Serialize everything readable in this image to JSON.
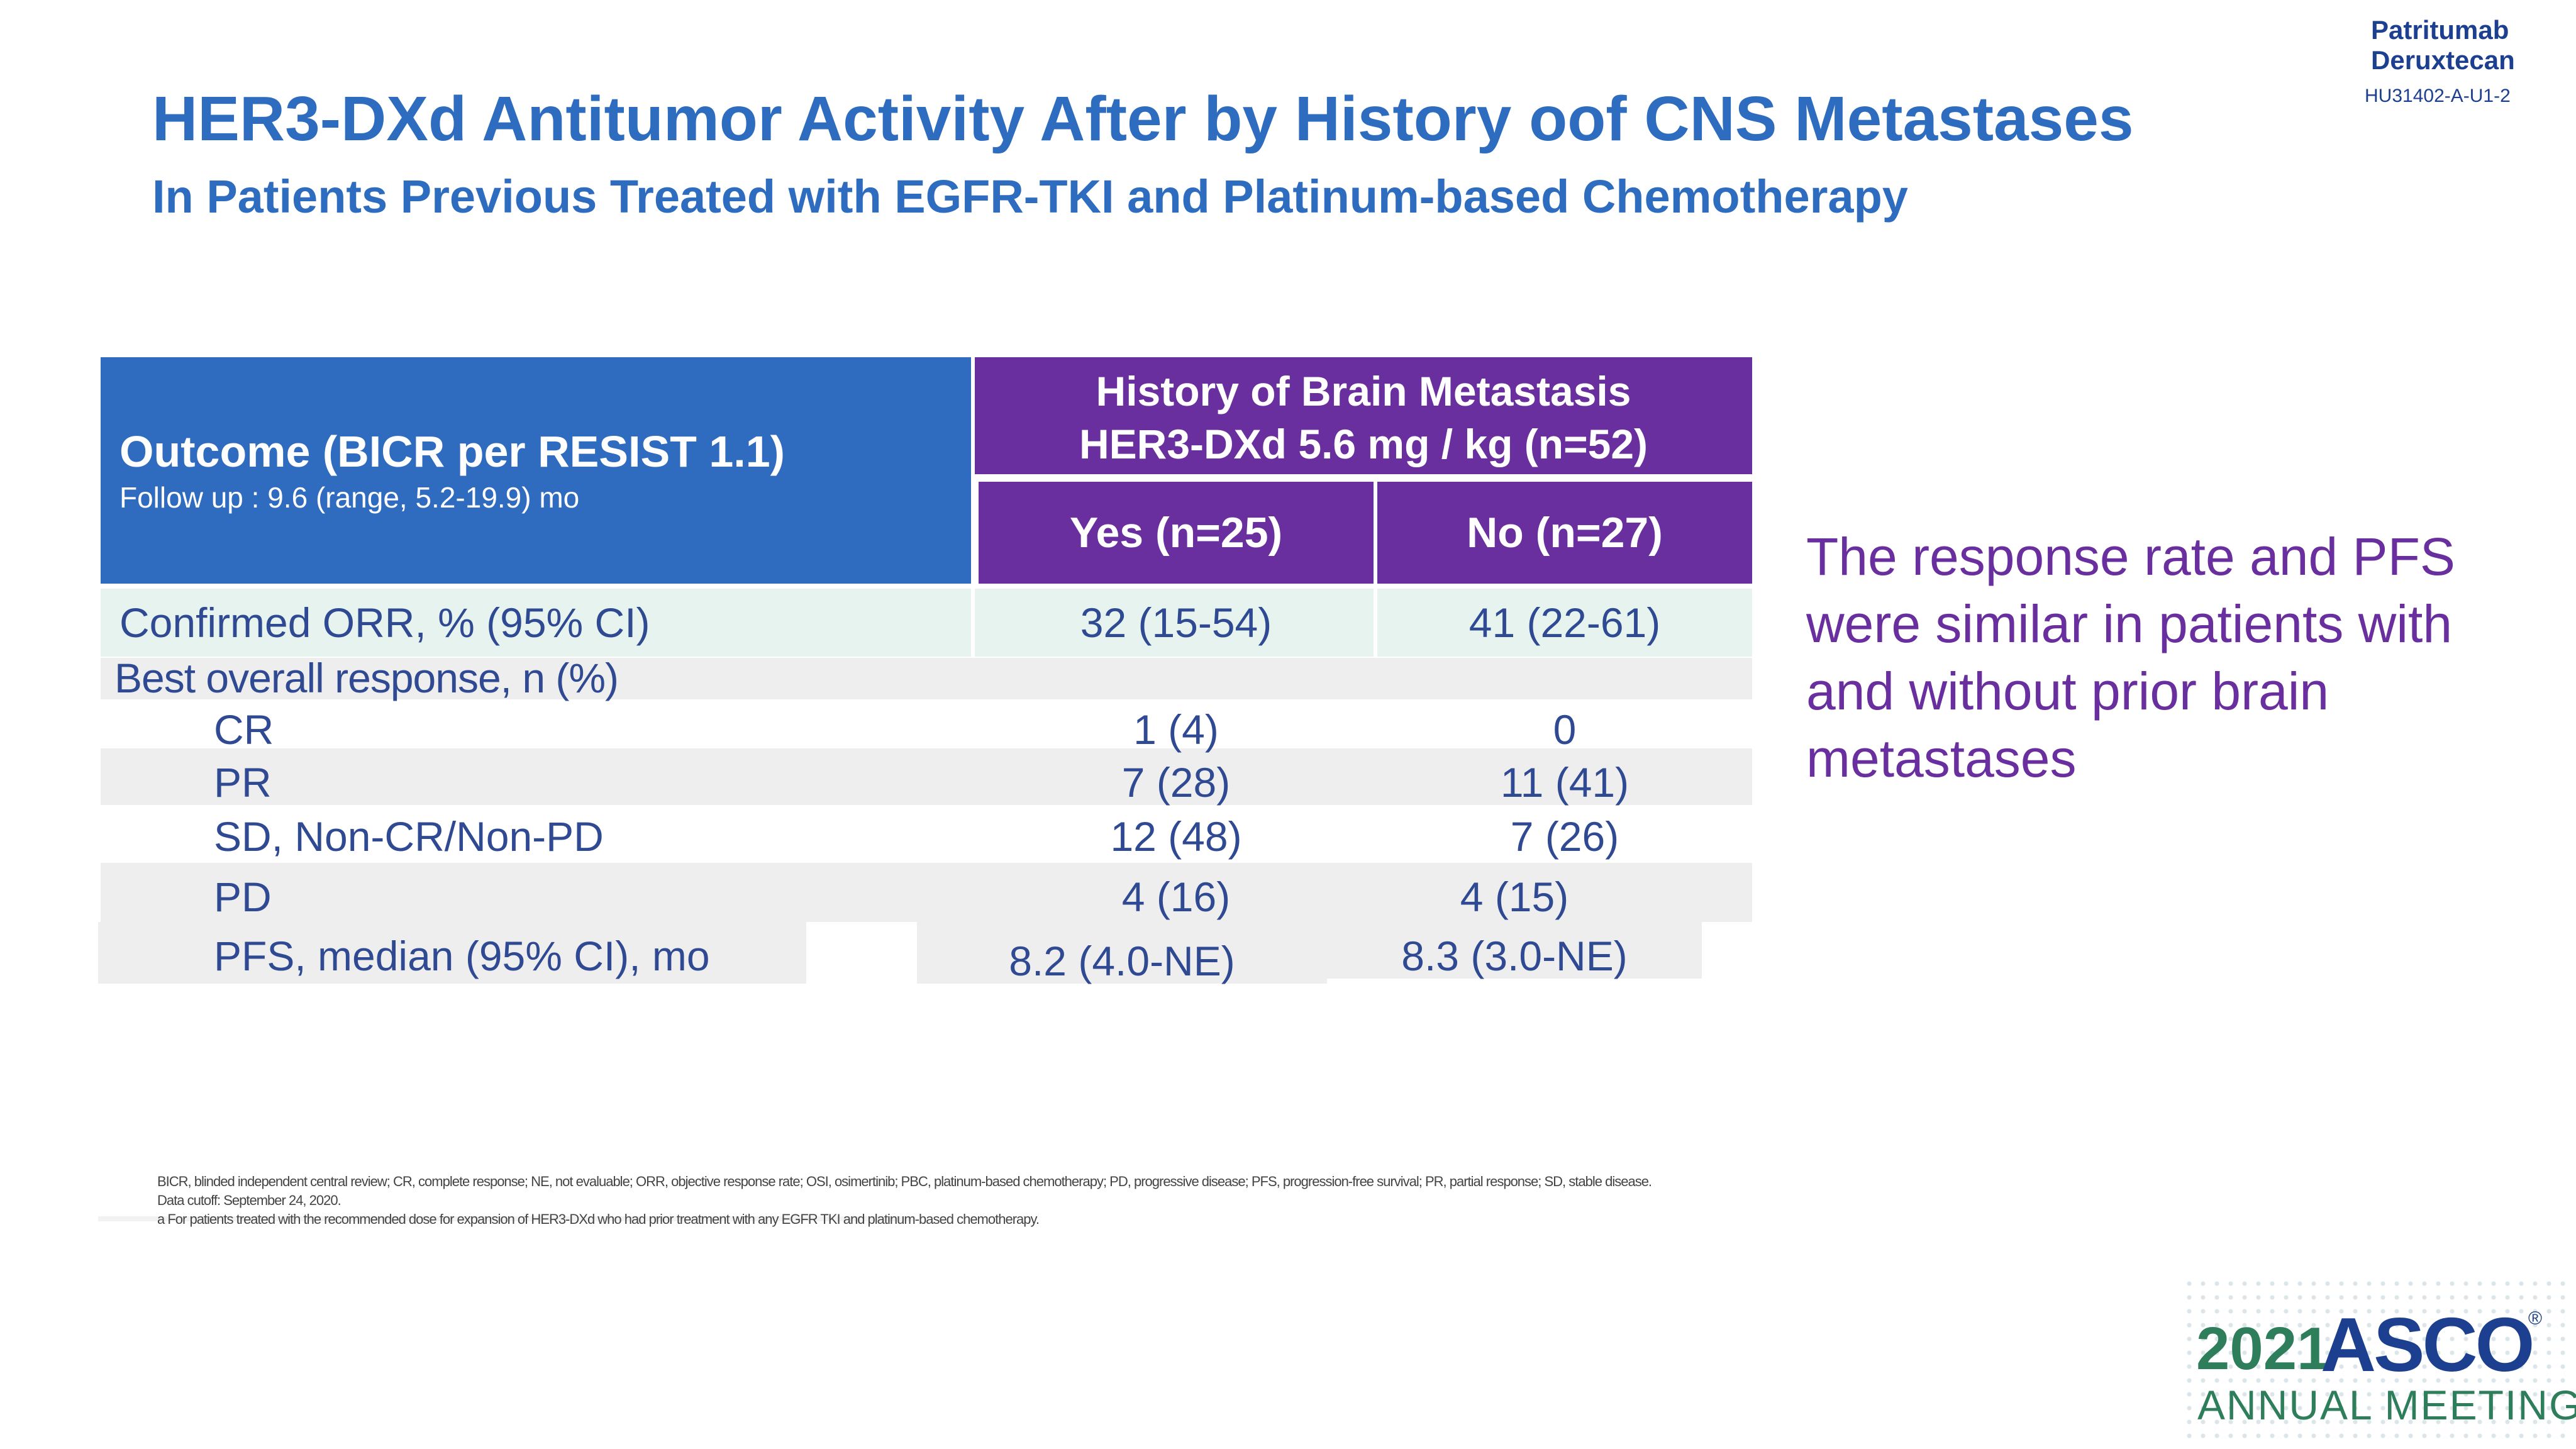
{
  "brand": {
    "name": "Patritumab\nDeruxtecan",
    "code": "HU31402-A-U1-2"
  },
  "header": {
    "title": "HER3-DXd Antitumor Activity After by History oof CNS Metastases",
    "subtitle": "In Patients Previous Treated with EGFR-TKI and Platinum-based Chemotherapy"
  },
  "table": {
    "outcome_title": "Outcome (BICR per RESIST 1.1)",
    "outcome_followup": "Follow up : 9.6 (range, 5.2-19.9) mo",
    "group_line1": "History of Brain Metastasis",
    "group_line2": "HER3-DXd 5.6 mg / kg (n=52)",
    "col_yes": "Yes (n=25)",
    "col_no": "No (n=27)",
    "rows": [
      {
        "label": "Confirmed ORR, % (95% CI)",
        "yes": "32 (15-54)",
        "no": "41 (22-61)"
      },
      {
        "label": "Best overall response, n (%)",
        "yes": "",
        "no": ""
      },
      {
        "label": "CR",
        "yes": "1 (4)",
        "no": "0"
      },
      {
        "label": "PR",
        "yes": "7 (28)",
        "no": "11 (41)"
      },
      {
        "label": "SD, Non-CR/Non-PD",
        "yes": "12 (48)",
        "no": "7 (26)"
      },
      {
        "label": "PD",
        "yes": "4 (16)",
        "no": "4 (15)"
      },
      {
        "label": "PFS, median (95% CI), mo",
        "yes": "8.2 (4.0-NE)",
        "no": "8.3 (3.0-NE)"
      }
    ]
  },
  "side_note": "The response rate and PFS were similar in patients with and without prior brain metastases",
  "footnotes": {
    "abbreviations": "BICR, blinded independent central review; CR, complete response; NE, not evaluable; ORR, objective response rate; OSI, osimertinib; PBC, platinum-based chemotherapy; PD, progressive disease; PFS, progression-free survival; PR, partial response; SD, stable disease.",
    "cutoff": "Data cutoff: September 24, 2020.",
    "note_a": "a For patients treated with the recommended dose for expansion of HER3-DXd who had prior treatment with any EGFR TKI and platinum-based chemotherapy."
  },
  "asco": {
    "year": "2021",
    "name": "ASCO",
    "registered": "®",
    "meeting": "ANNUAL MEETING"
  },
  "colors": {
    "blue_header": "#2f6bbf",
    "purple_header": "#6a2f9e",
    "title_blue": "#2e6cbf",
    "asco_green": "#2e7d5b",
    "asco_navy": "#1c3f8f"
  }
}
